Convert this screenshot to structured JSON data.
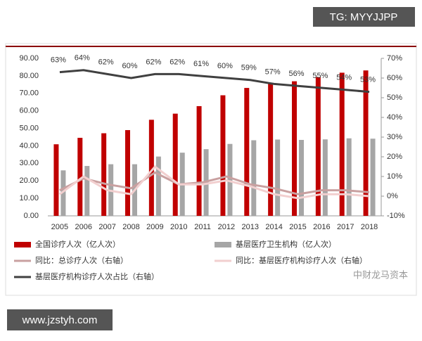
{
  "badge": "TG: MYYJJPP",
  "footer_url": "www.jzstyh.com",
  "watermark": "中财龙马资本",
  "chart_data": {
    "type": "bar",
    "categories": [
      "2005",
      "2006",
      "2007",
      "2008",
      "2009",
      "2010",
      "2011",
      "2012",
      "2013",
      "2014",
      "2015",
      "2016",
      "2017",
      "2018"
    ],
    "ylim": [
      0,
      90
    ],
    "yticks": [
      {
        "value": 0,
        "label": "0.00"
      },
      {
        "value": 10,
        "label": "10.00"
      },
      {
        "value": 20,
        "label": "20.00"
      },
      {
        "value": 30,
        "label": "30.00"
      },
      {
        "value": 40,
        "label": "40.00"
      },
      {
        "value": 50,
        "label": "50.00"
      },
      {
        "value": 60,
        "label": "60.00"
      },
      {
        "value": 70,
        "label": "70.00"
      },
      {
        "value": 80,
        "label": "80.00"
      },
      {
        "value": 90,
        "label": "90.00"
      }
    ],
    "y2lim": [
      -10,
      70
    ],
    "y2ticks": [
      {
        "value": -10,
        "label": "-10%"
      },
      {
        "value": 0,
        "label": "0%"
      },
      {
        "value": 10,
        "label": "10%"
      },
      {
        "value": 20,
        "label": "20%"
      },
      {
        "value": 30,
        "label": "30%"
      },
      {
        "value": 40,
        "label": "40%"
      },
      {
        "value": 50,
        "label": "50%"
      },
      {
        "value": 60,
        "label": "60%"
      },
      {
        "value": 70,
        "label": "70%"
      }
    ],
    "series": [
      {
        "name": "全国诊疗人次（亿人次）",
        "type": "bar",
        "color": "#c00000",
        "values": [
          40.9,
          44.6,
          47.2,
          49.0,
          54.9,
          58.4,
          62.7,
          68.9,
          73.1,
          76.0,
          76.9,
          79.3,
          81.8,
          83.1
        ]
      },
      {
        "name": "基层医疗卫生机构（亿人次）",
        "type": "bar",
        "color": "#a6a6a6",
        "values": [
          26.0,
          28.5,
          29.5,
          29.5,
          33.9,
          36.1,
          38.1,
          41.1,
          43.2,
          43.6,
          43.4,
          43.7,
          44.3,
          44.1
        ]
      },
      {
        "name": "同比：总诊疗人次（右轴）",
        "type": "line",
        "axis": "y2",
        "color": "#c9a0a0",
        "values": [
          3,
          9,
          6,
          4,
          12,
          6,
          7,
          10,
          6,
          4,
          1,
          3,
          3,
          2
        ]
      },
      {
        "name": "同比：基层医疗机构诊疗人次（右轴）",
        "type": "line",
        "axis": "y2",
        "color": "#f2cfcf",
        "values": [
          1,
          10,
          3,
          1,
          15,
          6,
          6,
          8,
          5,
          1,
          -1,
          1,
          1,
          0
        ]
      },
      {
        "name": "基层医疗机构诊疗人次占比（右轴）",
        "type": "line",
        "axis": "y2",
        "color": "#404040",
        "values": [
          63,
          64,
          62,
          60,
          62,
          62,
          61,
          60,
          59,
          57,
          56,
          55,
          54,
          53
        ],
        "value_labels": [
          "63%",
          "64%",
          "62%",
          "60%",
          "62%",
          "62%",
          "61%",
          "60%",
          "59%",
          "57%",
          "56%",
          "55%",
          "54%",
          "53%"
        ]
      }
    ]
  }
}
